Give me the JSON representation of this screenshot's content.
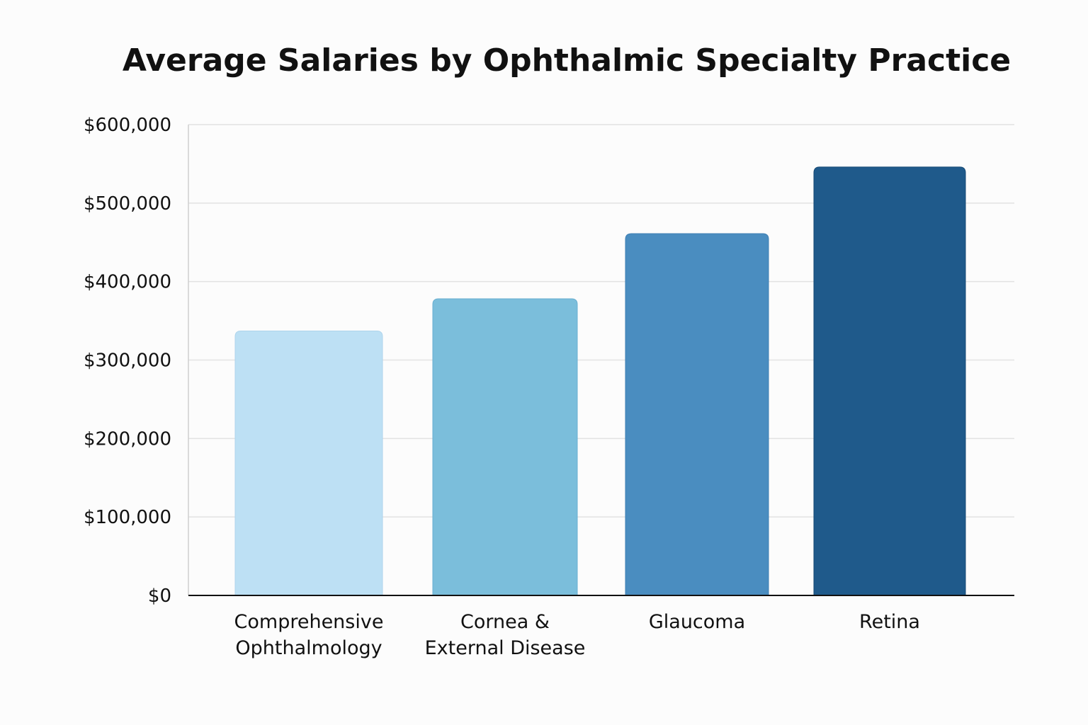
{
  "chart_data": {
    "type": "bar",
    "title": "Average Salaries by Ophthalmic Specialty Practice",
    "xlabel": "",
    "ylabel": "",
    "categories": [
      [
        "Comprehensive",
        "Ophthalmology"
      ],
      [
        "Cornea &",
        "External Disease"
      ],
      [
        "Glaucoma"
      ],
      [
        "Retina"
      ]
    ],
    "values": [
      337000,
      378000,
      461000,
      546000
    ],
    "ylim": [
      0,
      600000
    ],
    "yticks": [
      0,
      100000,
      200000,
      300000,
      400000,
      500000,
      600000
    ],
    "ytick_labels": [
      "$0",
      "$100,000",
      "$200,000",
      "$300,000",
      "$400,000",
      "$500,000",
      "$600,000"
    ],
    "grid": true,
    "legend": "none",
    "colors": [
      "#bde0f4",
      "#7bbedb",
      "#4a8dc0",
      "#1f5a8b"
    ]
  }
}
